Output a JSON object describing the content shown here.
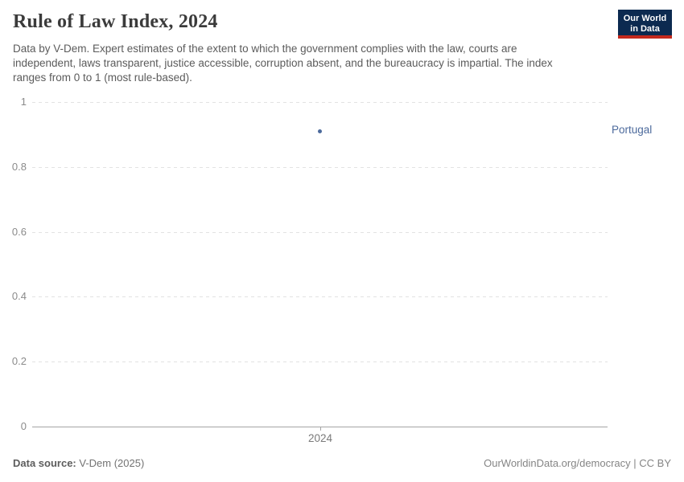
{
  "header": {
    "title": "Rule of Law Index, 2024",
    "subtitle": "Data by V-Dem. Expert estimates of the extent to which the government complies with the law, courts are independent, laws transparent, justice accessible, corruption absent, and the bureaucracy is impartial. The index ranges from 0 to 1 (most rule-based).",
    "logo": {
      "line1": "Our World",
      "line2": "in Data"
    }
  },
  "chart_data": {
    "type": "scatter",
    "title": "Rule of Law Index, 2024",
    "x": [
      2024
    ],
    "x_tick_labels": [
      "2024"
    ],
    "series": [
      {
        "name": "Portugal",
        "values": [
          0.91
        ],
        "color": "#4c6a9c"
      }
    ],
    "xlabel": "",
    "ylabel": "",
    "ylim": [
      0,
      1
    ],
    "y_ticks": [
      "0",
      "0.2",
      "0.4",
      "0.6",
      "0.8",
      "1"
    ],
    "grid": "horizontal-dashed",
    "legend_position": "label-right-of-point"
  },
  "footer": {
    "source_label": "Data source:",
    "source_value": " V-Dem (2025)",
    "link_text": "OurWorldinData.org/democracy | CC BY"
  },
  "colors": {
    "accent_blue": "#4c6a9c",
    "logo_navy": "#0c2a50",
    "logo_red": "#c4291c",
    "gridline": "#e2e2e2",
    "axis_line": "#a5a5a5"
  }
}
